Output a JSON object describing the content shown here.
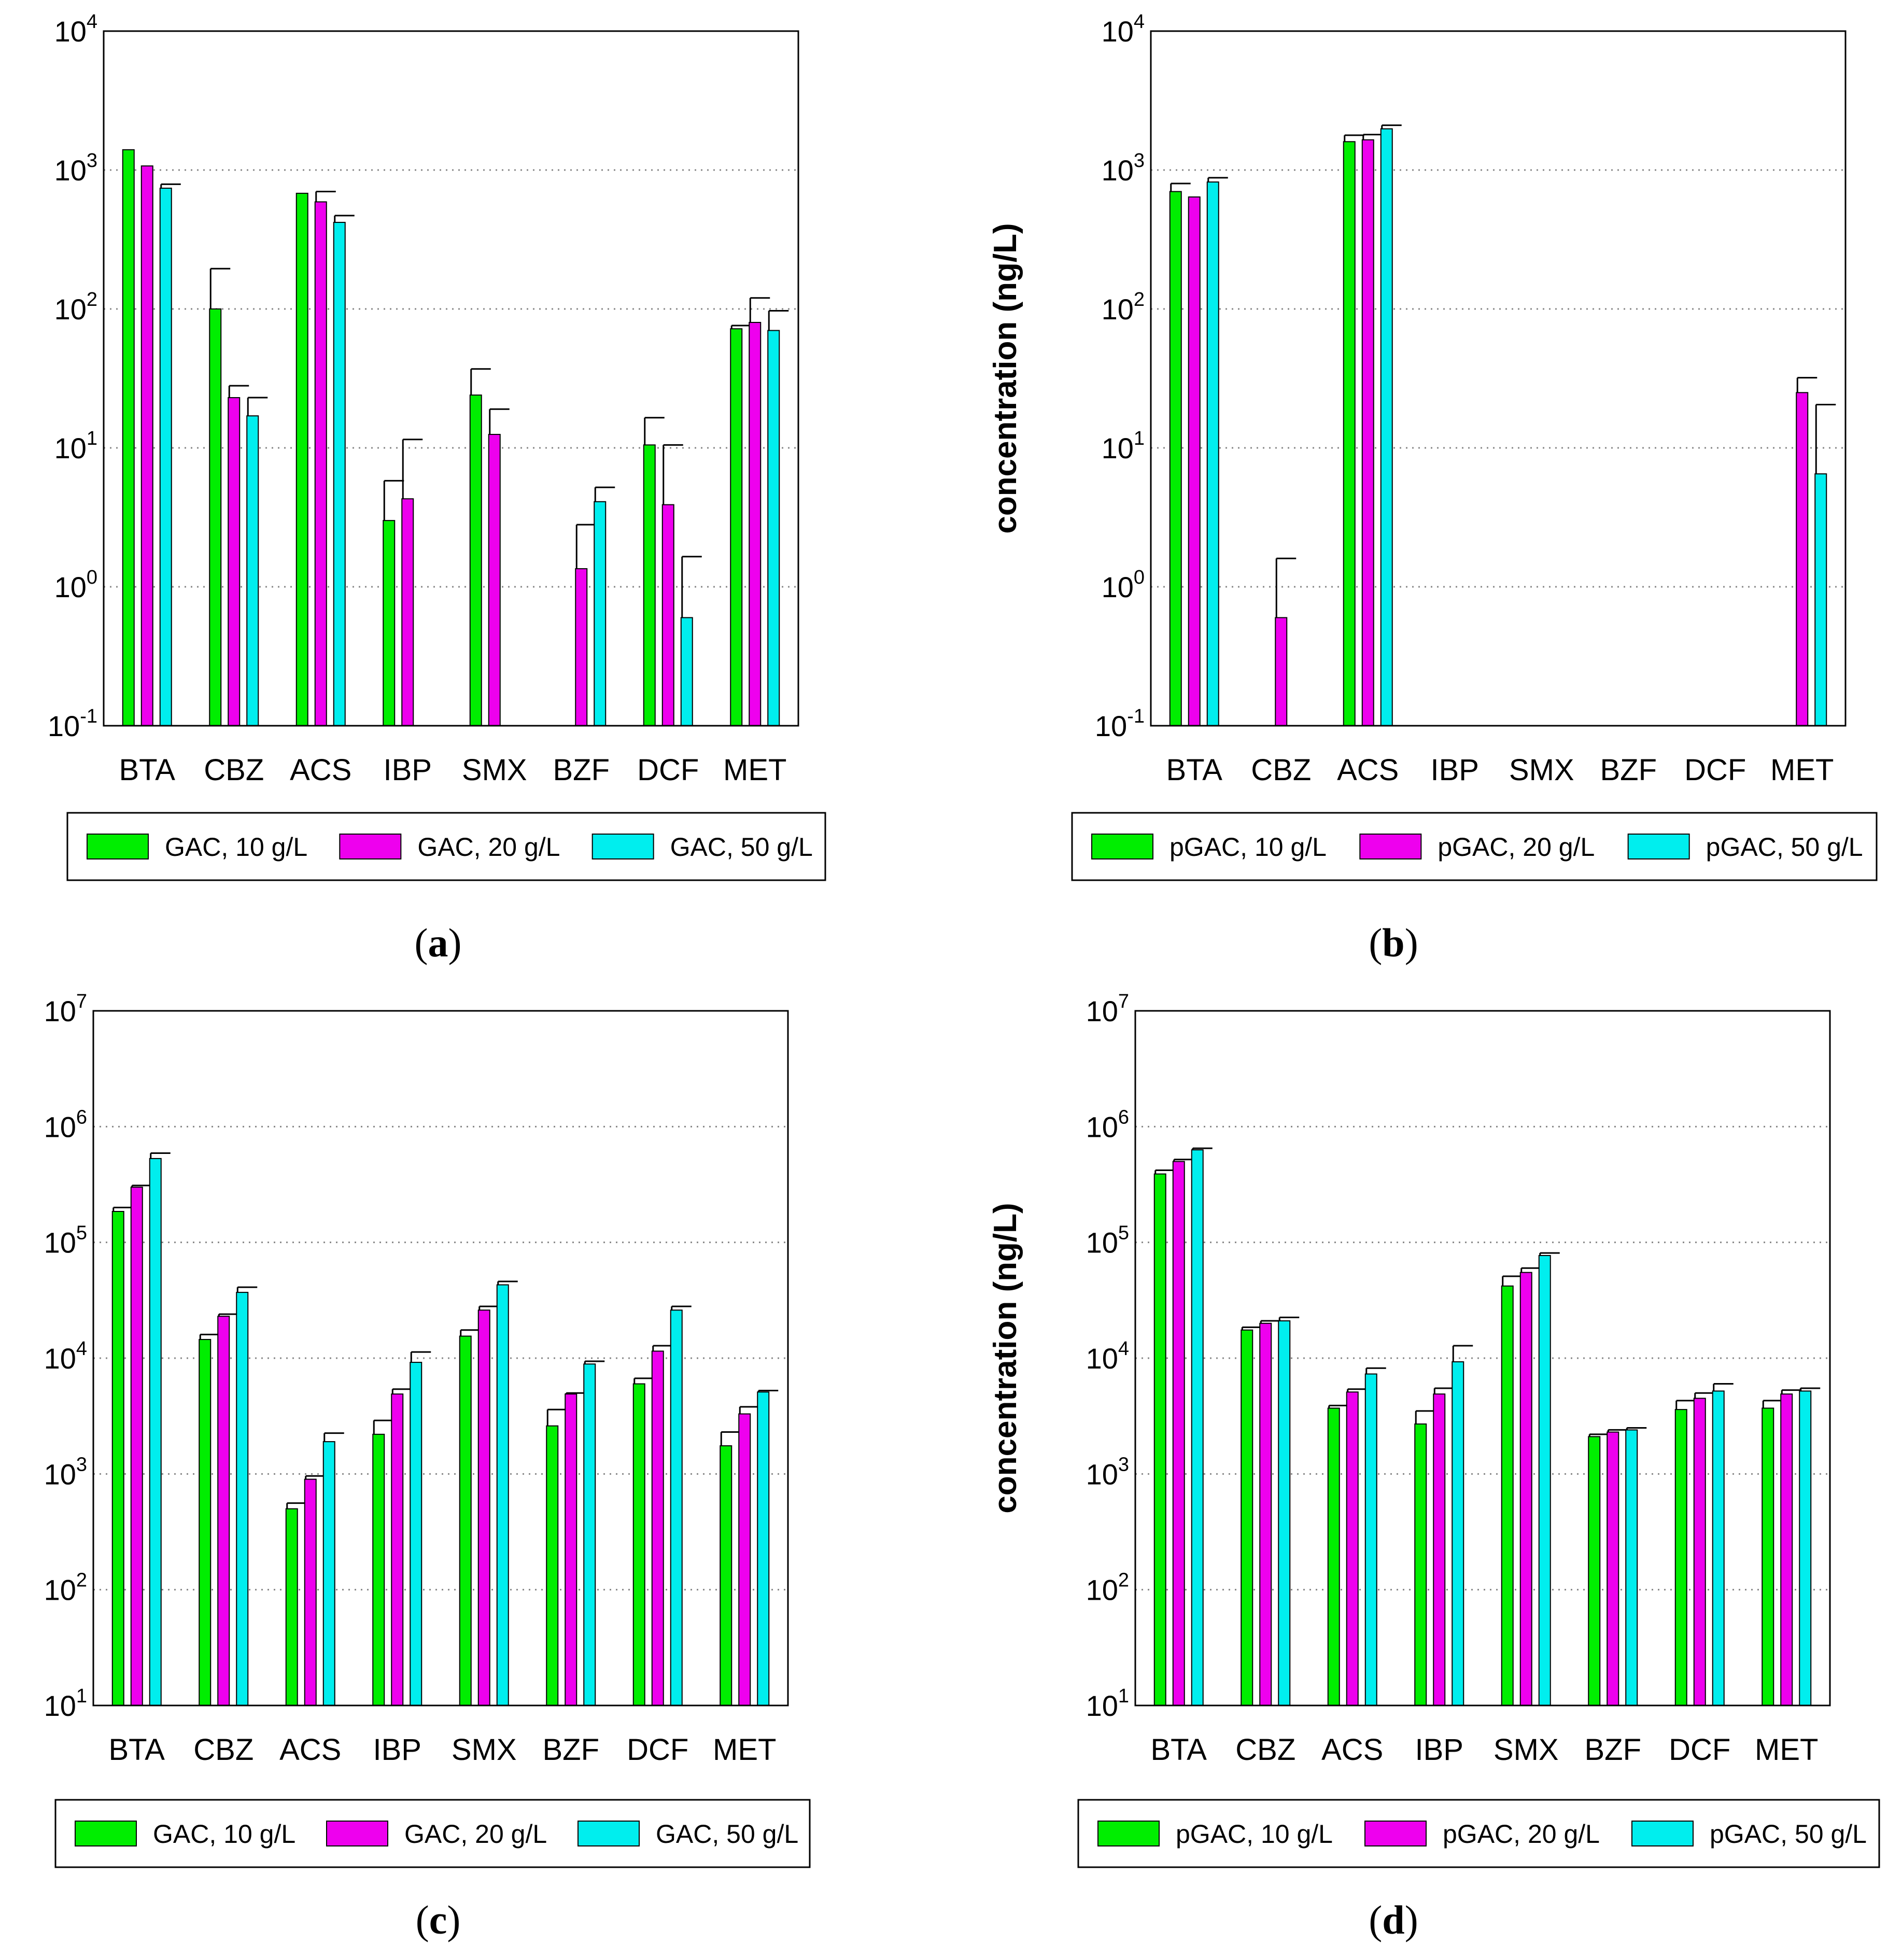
{
  "colors": {
    "series_10": "#00ee00",
    "series_20": "#ee00ee",
    "series_50": "#00eeee",
    "axis": "#000000",
    "grid": "#888888"
  },
  "chart_data": [
    {
      "id": "a",
      "type": "bar",
      "scale": "log",
      "caption": "a",
      "ylabel": "",
      "ylim": [
        0.1,
        10000
      ],
      "ticks": [
        {
          "base": "10",
          "exp": "-1"
        },
        {
          "base": "10",
          "exp": "0"
        },
        {
          "base": "10",
          "exp": "1"
        },
        {
          "base": "10",
          "exp": "2"
        },
        {
          "base": "10",
          "exp": "3"
        },
        {
          "base": "10",
          "exp": "4"
        }
      ],
      "categories": [
        "BTA",
        "CBZ",
        "ACS",
        "IBP",
        "SMX",
        "BZF",
        "DCF",
        "MET"
      ],
      "series": [
        {
          "name": "GAC, 10 g/L",
          "values": [
            1400,
            100,
            680,
            3,
            24,
            null,
            10.5,
            72
          ],
          "errors": [
            null,
            195,
            null,
            5.8,
            37,
            null,
            16.5,
            76
          ]
        },
        {
          "name": "GAC, 20 g/L",
          "values": [
            1070,
            23,
            590,
            4.3,
            12.5,
            1.35,
            3.9,
            80
          ],
          "errors": [
            null,
            28,
            700,
            11.5,
            19,
            2.8,
            10.5,
            120
          ]
        },
        {
          "name": "GAC, 50 g/L",
          "values": [
            740,
            17,
            420,
            null,
            null,
            4.1,
            0.6,
            70
          ],
          "errors": [
            790,
            23,
            470,
            null,
            null,
            5.2,
            1.65,
            97
          ]
        }
      ]
    },
    {
      "id": "b",
      "type": "bar",
      "scale": "log",
      "caption": "b",
      "ylabel": "concentration (ng/L)",
      "ylim": [
        0.1,
        10000
      ],
      "ticks": [
        {
          "base": "10",
          "exp": "-1"
        },
        {
          "base": "10",
          "exp": "0"
        },
        {
          "base": "10",
          "exp": "1"
        },
        {
          "base": "10",
          "exp": "2"
        },
        {
          "base": "10",
          "exp": "3"
        },
        {
          "base": "10",
          "exp": "4"
        }
      ],
      "categories": [
        "BTA",
        "CBZ",
        "ACS",
        "IBP",
        "SMX",
        "BZF",
        "DCF",
        "MET"
      ],
      "series": [
        {
          "name": "pGAC, 10 g/L",
          "values": [
            700,
            null,
            1600,
            null,
            null,
            null,
            null,
            null
          ],
          "errors": [
            800,
            null,
            1780,
            null,
            null,
            null,
            null,
            null
          ]
        },
        {
          "name": "pGAC, 20 g/L",
          "values": [
            640,
            0.6,
            1650,
            null,
            null,
            null,
            null,
            25
          ],
          "errors": [
            null,
            1.6,
            1800,
            null,
            null,
            null,
            null,
            32
          ]
        },
        {
          "name": "pGAC, 50 g/L",
          "values": [
            820,
            null,
            1980,
            null,
            null,
            null,
            null,
            6.5
          ],
          "errors": [
            880,
            null,
            2100,
            null,
            null,
            null,
            null,
            20.5
          ]
        }
      ]
    },
    {
      "id": "c",
      "type": "bar",
      "scale": "log",
      "caption": "c",
      "ylabel": "",
      "ylim": [
        10,
        10000000
      ],
      "ticks": [
        {
          "base": "10",
          "exp": "1"
        },
        {
          "base": "10",
          "exp": "2"
        },
        {
          "base": "10",
          "exp": "3"
        },
        {
          "base": "10",
          "exp": "4"
        },
        {
          "base": "10",
          "exp": "5"
        },
        {
          "base": "10",
          "exp": "6"
        },
        {
          "base": "10",
          "exp": "7"
        }
      ],
      "categories": [
        "BTA",
        "CBZ",
        "ACS",
        "IBP",
        "SMX",
        "BZF",
        "DCF",
        "MET"
      ],
      "series": [
        {
          "name": "GAC, 10 g/L",
          "values": [
            185000,
            14500,
            500,
            2200,
            15500,
            2600,
            6000,
            1750
          ],
          "errors": [
            200000,
            16000,
            560,
            2900,
            17500,
            3600,
            6700,
            2300
          ]
        },
        {
          "name": "GAC, 20 g/L",
          "values": [
            300000,
            23000,
            900,
            4900,
            26000,
            4900,
            11500,
            3300
          ],
          "errors": [
            310000,
            24000,
            960,
            5400,
            28000,
            5000,
            12800,
            3800
          ]
        },
        {
          "name": "GAC, 50 g/L",
          "values": [
            530000,
            37000,
            1900,
            9200,
            43000,
            8900,
            26000,
            5100
          ],
          "errors": [
            590000,
            41000,
            2250,
            11300,
            46000,
            9400,
            28000,
            5250
          ]
        }
      ]
    },
    {
      "id": "d",
      "type": "bar",
      "scale": "log",
      "caption": "d",
      "ylabel": "concentration (ng/L)",
      "ylim": [
        10,
        10000000
      ],
      "ticks": [
        {
          "base": "10",
          "exp": "1"
        },
        {
          "base": "10",
          "exp": "2"
        },
        {
          "base": "10",
          "exp": "3"
        },
        {
          "base": "10",
          "exp": "4"
        },
        {
          "base": "10",
          "exp": "5"
        },
        {
          "base": "10",
          "exp": "6"
        },
        {
          "base": "10",
          "exp": "7"
        }
      ],
      "categories": [
        "BTA",
        "CBZ",
        "ACS",
        "IBP",
        "SMX",
        "BZF",
        "DCF",
        "MET"
      ],
      "series": [
        {
          "name": "pGAC, 10 g/L",
          "values": [
            390000,
            17500,
            3700,
            2700,
            42000,
            2100,
            3600,
            3700
          ],
          "errors": [
            420000,
            18500,
            3900,
            3500,
            51000,
            2200,
            4300,
            4300
          ]
        },
        {
          "name": "pGAC, 20 g/L",
          "values": [
            500000,
            20000,
            5100,
            4900,
            55000,
            2300,
            4500,
            4900
          ],
          "errors": [
            520000,
            21000,
            5400,
            5500,
            60000,
            2400,
            5000,
            5300
          ]
        },
        {
          "name": "pGAC, 50 g/L",
          "values": [
            630000,
            21000,
            7300,
            9300,
            77000,
            2400,
            5200,
            5200
          ],
          "errors": [
            650000,
            22500,
            8200,
            12800,
            81000,
            2500,
            6000,
            5500
          ]
        }
      ]
    }
  ]
}
